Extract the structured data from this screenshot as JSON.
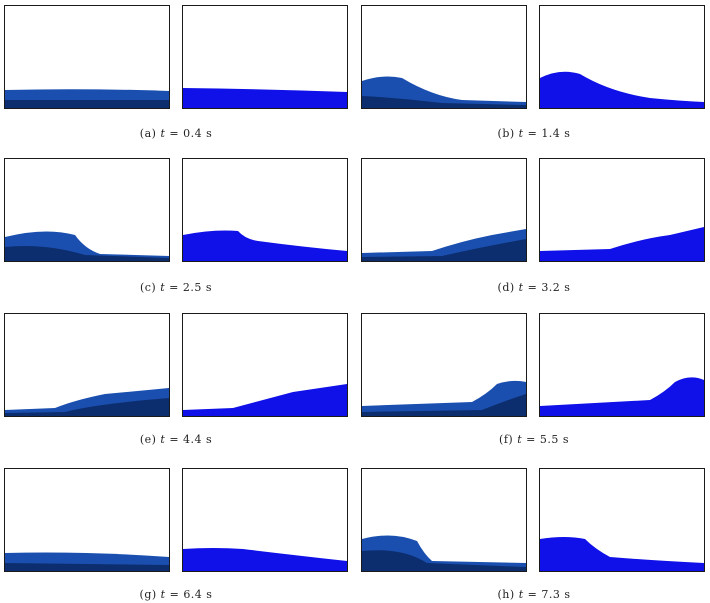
{
  "colors": {
    "photo_water": "#1a4fb0",
    "photo_water_dark": "#0d2e6e",
    "sim_water": "#1010e8",
    "border": "#1a1a1a"
  },
  "rows": [
    {
      "left": {
        "label": "(a)",
        "var": "t",
        "eq": "=",
        "value": "0.4 s"
      },
      "right": {
        "label": "(b)",
        "var": "t",
        "eq": "=",
        "value": "1.4 s"
      }
    },
    {
      "left": {
        "label": "(c)",
        "var": "t",
        "eq": "=",
        "value": "2.5 s"
      },
      "right": {
        "label": "(d)",
        "var": "t",
        "eq": "=",
        "value": "3.2 s"
      }
    },
    {
      "left": {
        "label": "(e)",
        "var": "t",
        "eq": "=",
        "value": "4.4 s"
      },
      "right": {
        "label": "(f)",
        "var": "t",
        "eq": "=",
        "value": "5.5 s"
      }
    },
    {
      "left": {
        "label": "(g)",
        "var": "t",
        "eq": "=",
        "value": "6.4 s"
      },
      "right": {
        "label": "(h)",
        "var": "t",
        "eq": "=",
        "value": "7.3 s"
      }
    }
  ]
}
